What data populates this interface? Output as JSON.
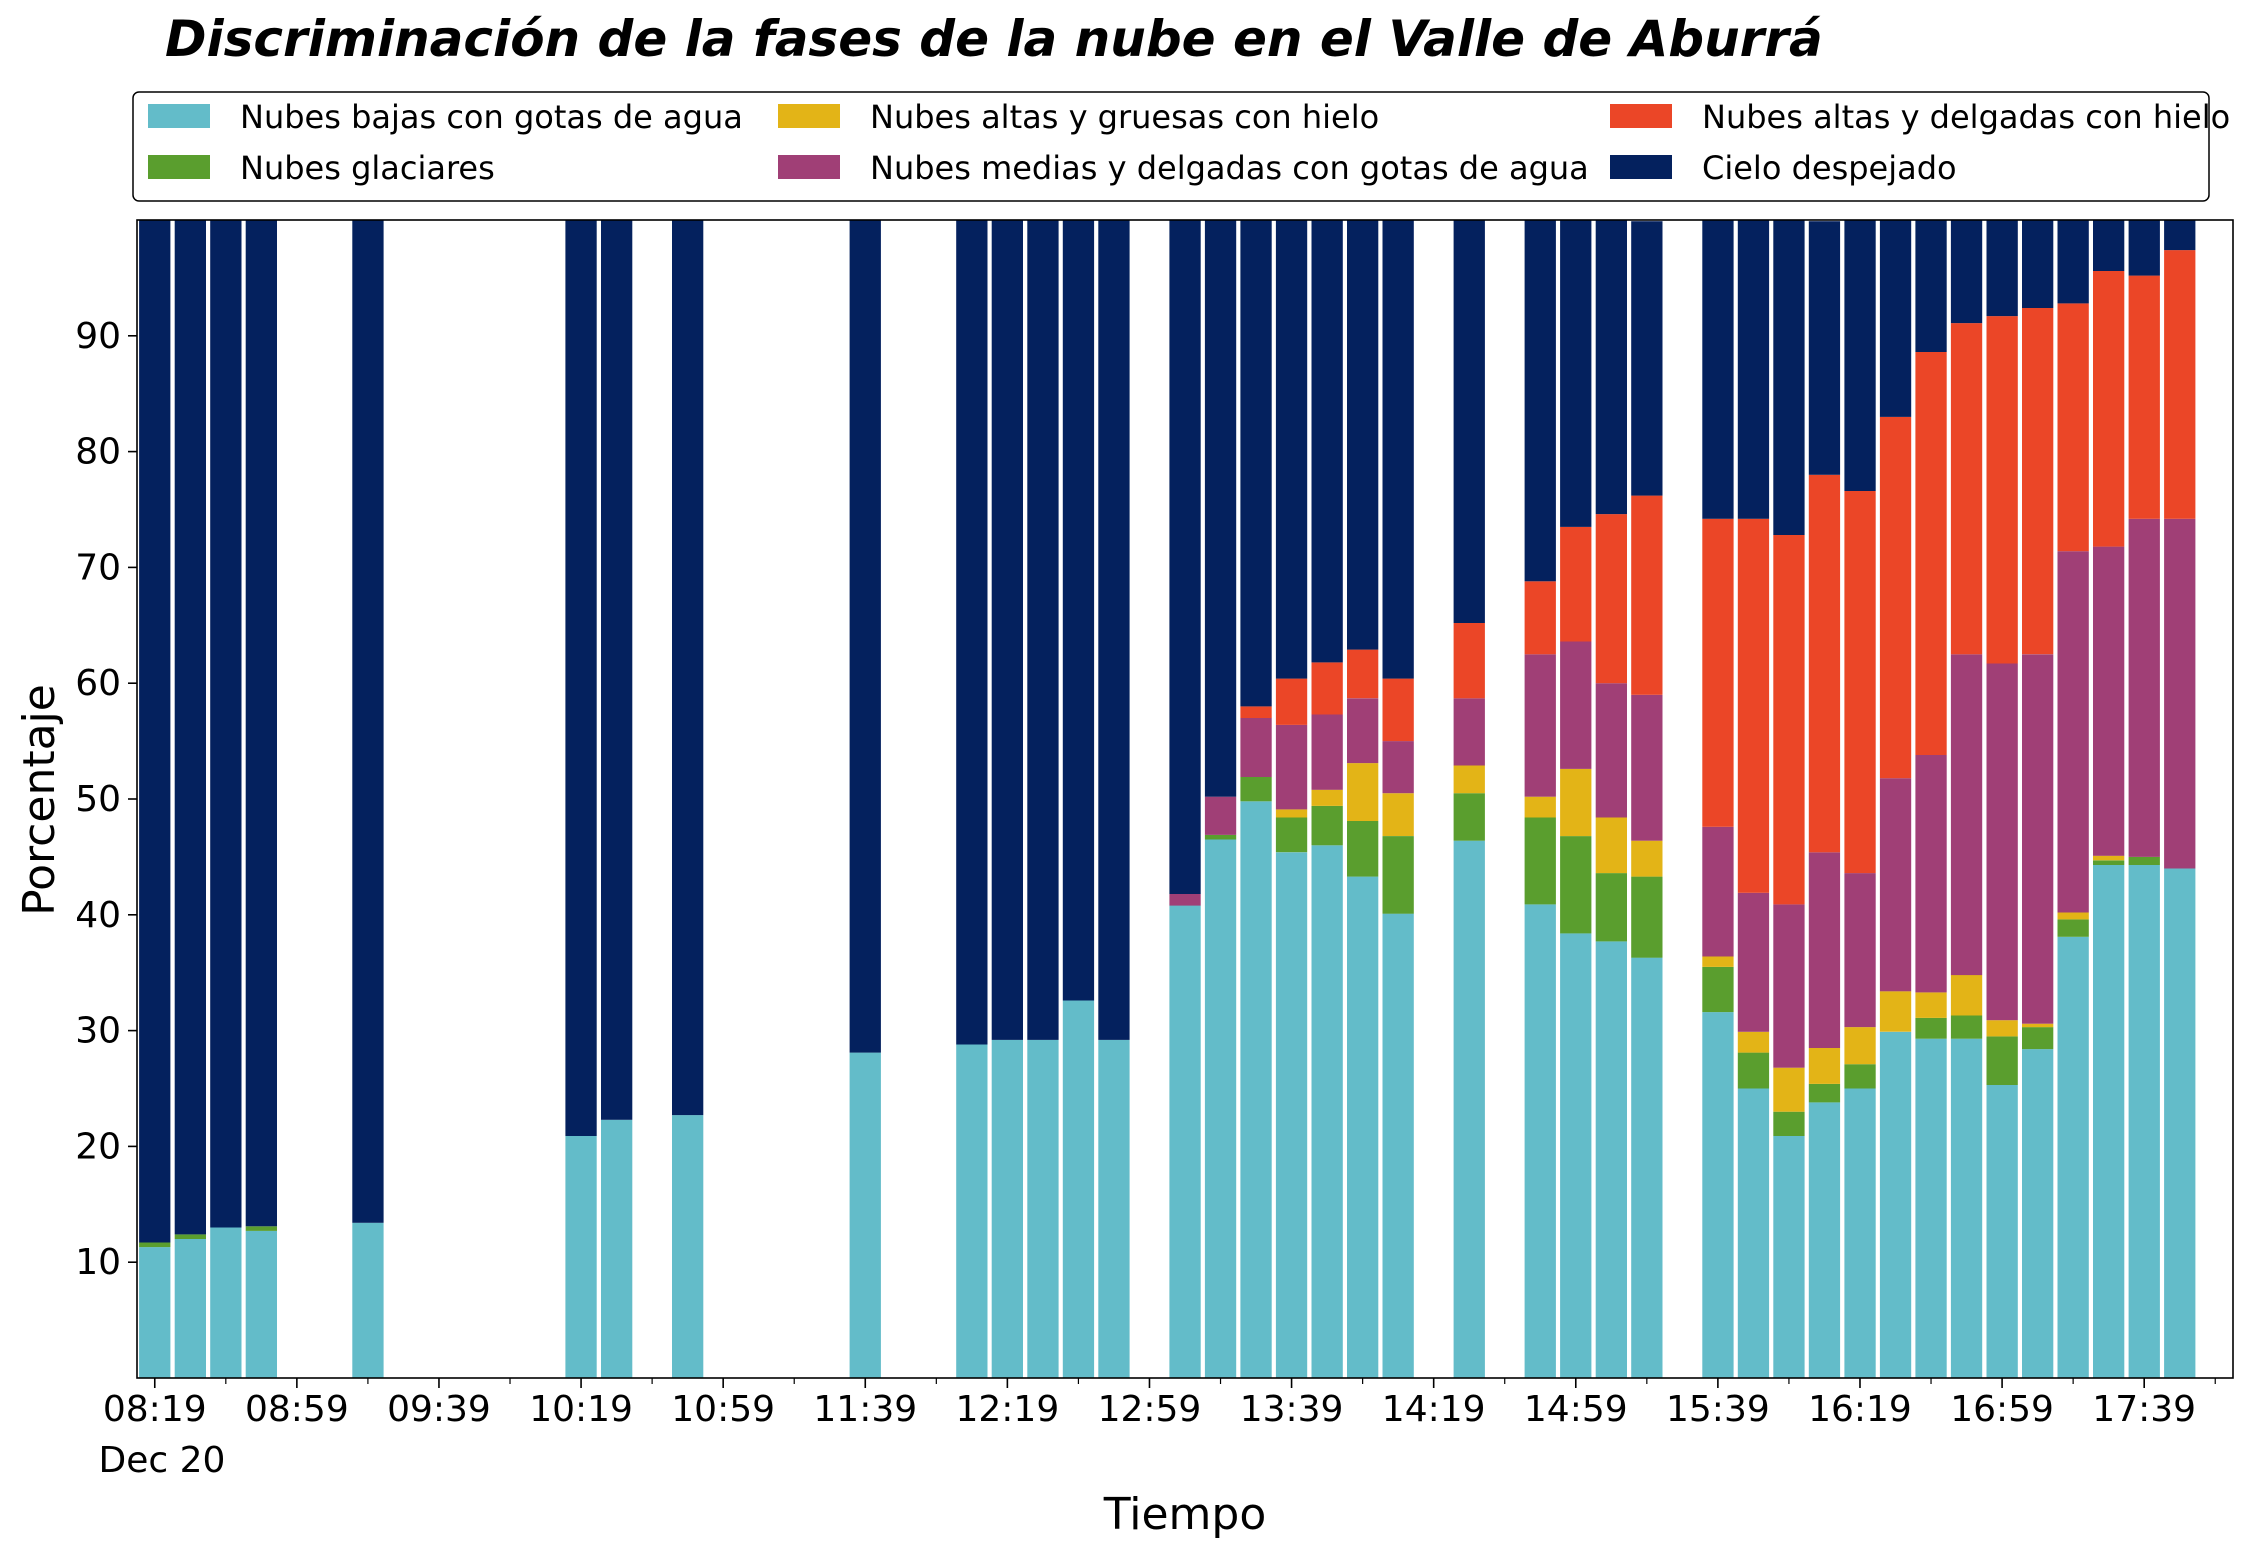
{
  "chart_data": {
    "type": "bar",
    "stacked": true,
    "title": "Discriminación de la fases de la nube en el Valle de Aburrá",
    "xlabel": "Tiempo",
    "ylabel": "Porcentaje",
    "ylim": [
      0,
      100
    ],
    "y_ticks": [
      10,
      20,
      30,
      40,
      50,
      60,
      70,
      80,
      90
    ],
    "x_ticks": [
      "08:19",
      "08:59",
      "09:39",
      "10:19",
      "10:59",
      "11:39",
      "12:19",
      "12:59",
      "13:39",
      "14:19",
      "14:59",
      "15:39",
      "16:19",
      "16:59",
      "17:39"
    ],
    "x_date_label": "Dec 20",
    "x_start": "08:19",
    "x_end": "17:59",
    "bar_interval_minutes": 10,
    "grid": false,
    "legend_placement": "top, above plot, 3 columns",
    "times": [
      "08:19",
      "08:29",
      "08:39",
      "08:49",
      "09:19",
      "10:19",
      "10:29",
      "10:49",
      "11:39",
      "12:09",
      "12:19",
      "12:29",
      "12:39",
      "12:49",
      "13:09",
      "13:19",
      "13:29",
      "13:39",
      "13:49",
      "13:59",
      "14:09",
      "14:29",
      "14:49",
      "14:59",
      "15:09",
      "15:19",
      "15:39",
      "15:49",
      "15:59",
      "16:09",
      "16:19",
      "16:29",
      "16:39",
      "16:49",
      "16:59",
      "17:09",
      "17:19",
      "17:29",
      "17:39",
      "17:49"
    ],
    "series": [
      {
        "name": "Nubes bajas con gotas de agua",
        "color": "#63bcc9",
        "values": [
          11.3,
          12.0,
          13.0,
          12.7,
          13.4,
          20.9,
          22.3,
          22.7,
          28.1,
          28.8,
          29.2,
          29.2,
          32.6,
          29.2,
          40.8,
          46.5,
          49.8,
          45.4,
          46.0,
          43.3,
          40.1,
          46.4,
          40.9,
          38.4,
          37.7,
          36.3,
          31.6,
          25.0,
          20.9,
          23.8,
          25.0,
          29.9,
          29.3,
          29.3,
          25.3,
          28.4,
          38.1,
          44.3,
          44.3,
          44.0
        ]
      },
      {
        "name": "Nubes glaciares",
        "color": "#5a9e2e",
        "values": [
          0.4,
          0.4,
          0.0,
          0.4,
          0.0,
          0.0,
          0.0,
          0.0,
          0.0,
          0.0,
          0.0,
          0.0,
          0.0,
          0.0,
          0.0,
          0.4,
          2.1,
          3.0,
          3.4,
          4.8,
          6.7,
          4.1,
          7.5,
          8.4,
          5.9,
          7.0,
          3.9,
          3.1,
          2.1,
          1.6,
          2.1,
          0.0,
          1.8,
          2.0,
          4.2,
          1.9,
          1.5,
          0.4,
          0.7,
          0.0
        ]
      },
      {
        "name": "Nubes altas y gruesas con hielo",
        "color": "#e3b417",
        "values": [
          0.0,
          0.0,
          0.0,
          0.0,
          0.0,
          0.0,
          0.0,
          0.0,
          0.0,
          0.0,
          0.0,
          0.0,
          0.0,
          0.0,
          0.0,
          0.0,
          0.0,
          0.7,
          1.4,
          5.0,
          3.7,
          2.4,
          1.8,
          5.8,
          4.8,
          3.1,
          0.9,
          1.8,
          3.8,
          3.1,
          3.2,
          3.5,
          2.2,
          3.5,
          1.4,
          0.3,
          0.6,
          0.4,
          0.0,
          0.0
        ]
      },
      {
        "name": "Nubes medias y delgadas con gotas de agua",
        "color": "#a03f76",
        "values": [
          0.0,
          0.0,
          0.0,
          0.0,
          0.0,
          0.0,
          0.0,
          0.0,
          0.0,
          0.0,
          0.0,
          0.0,
          0.0,
          0.0,
          1.0,
          3.3,
          5.1,
          7.3,
          6.5,
          5.6,
          4.5,
          5.8,
          12.3,
          11.0,
          11.6,
          12.6,
          11.2,
          12.0,
          14.1,
          16.9,
          13.3,
          18.4,
          20.5,
          27.7,
          30.8,
          31.9,
          31.2,
          26.7,
          29.2,
          30.2
        ]
      },
      {
        "name": "Nubes altas y delgadas con hielo",
        "color": "#eb4627",
        "values": [
          0.0,
          0.0,
          0.0,
          0.0,
          0.0,
          0.0,
          0.0,
          0.0,
          0.0,
          0.0,
          0.0,
          0.0,
          0.0,
          0.0,
          0.0,
          0.0,
          1.0,
          4.0,
          4.5,
          4.2,
          5.4,
          6.5,
          6.3,
          9.9,
          14.6,
          17.2,
          26.6,
          32.3,
          31.9,
          32.6,
          33.0,
          31.2,
          34.8,
          28.6,
          30.0,
          29.9,
          21.4,
          23.8,
          21.0,
          23.2
        ]
      },
      {
        "name": "Cielo despejado",
        "color": "#04215e",
        "values": [
          88.3,
          87.6,
          87.0,
          86.9,
          86.6,
          79.1,
          77.7,
          77.3,
          71.9,
          71.2,
          70.8,
          70.8,
          67.4,
          70.8,
          58.2,
          49.8,
          42.0,
          39.6,
          38.2,
          37.1,
          39.6,
          34.8,
          31.2,
          26.5,
          25.4,
          23.7,
          25.8,
          25.8,
          27.2,
          21.9,
          23.4,
          17.0,
          11.4,
          8.9,
          8.3,
          7.6,
          7.2,
          4.4,
          4.8,
          2.6
        ]
      }
    ]
  }
}
